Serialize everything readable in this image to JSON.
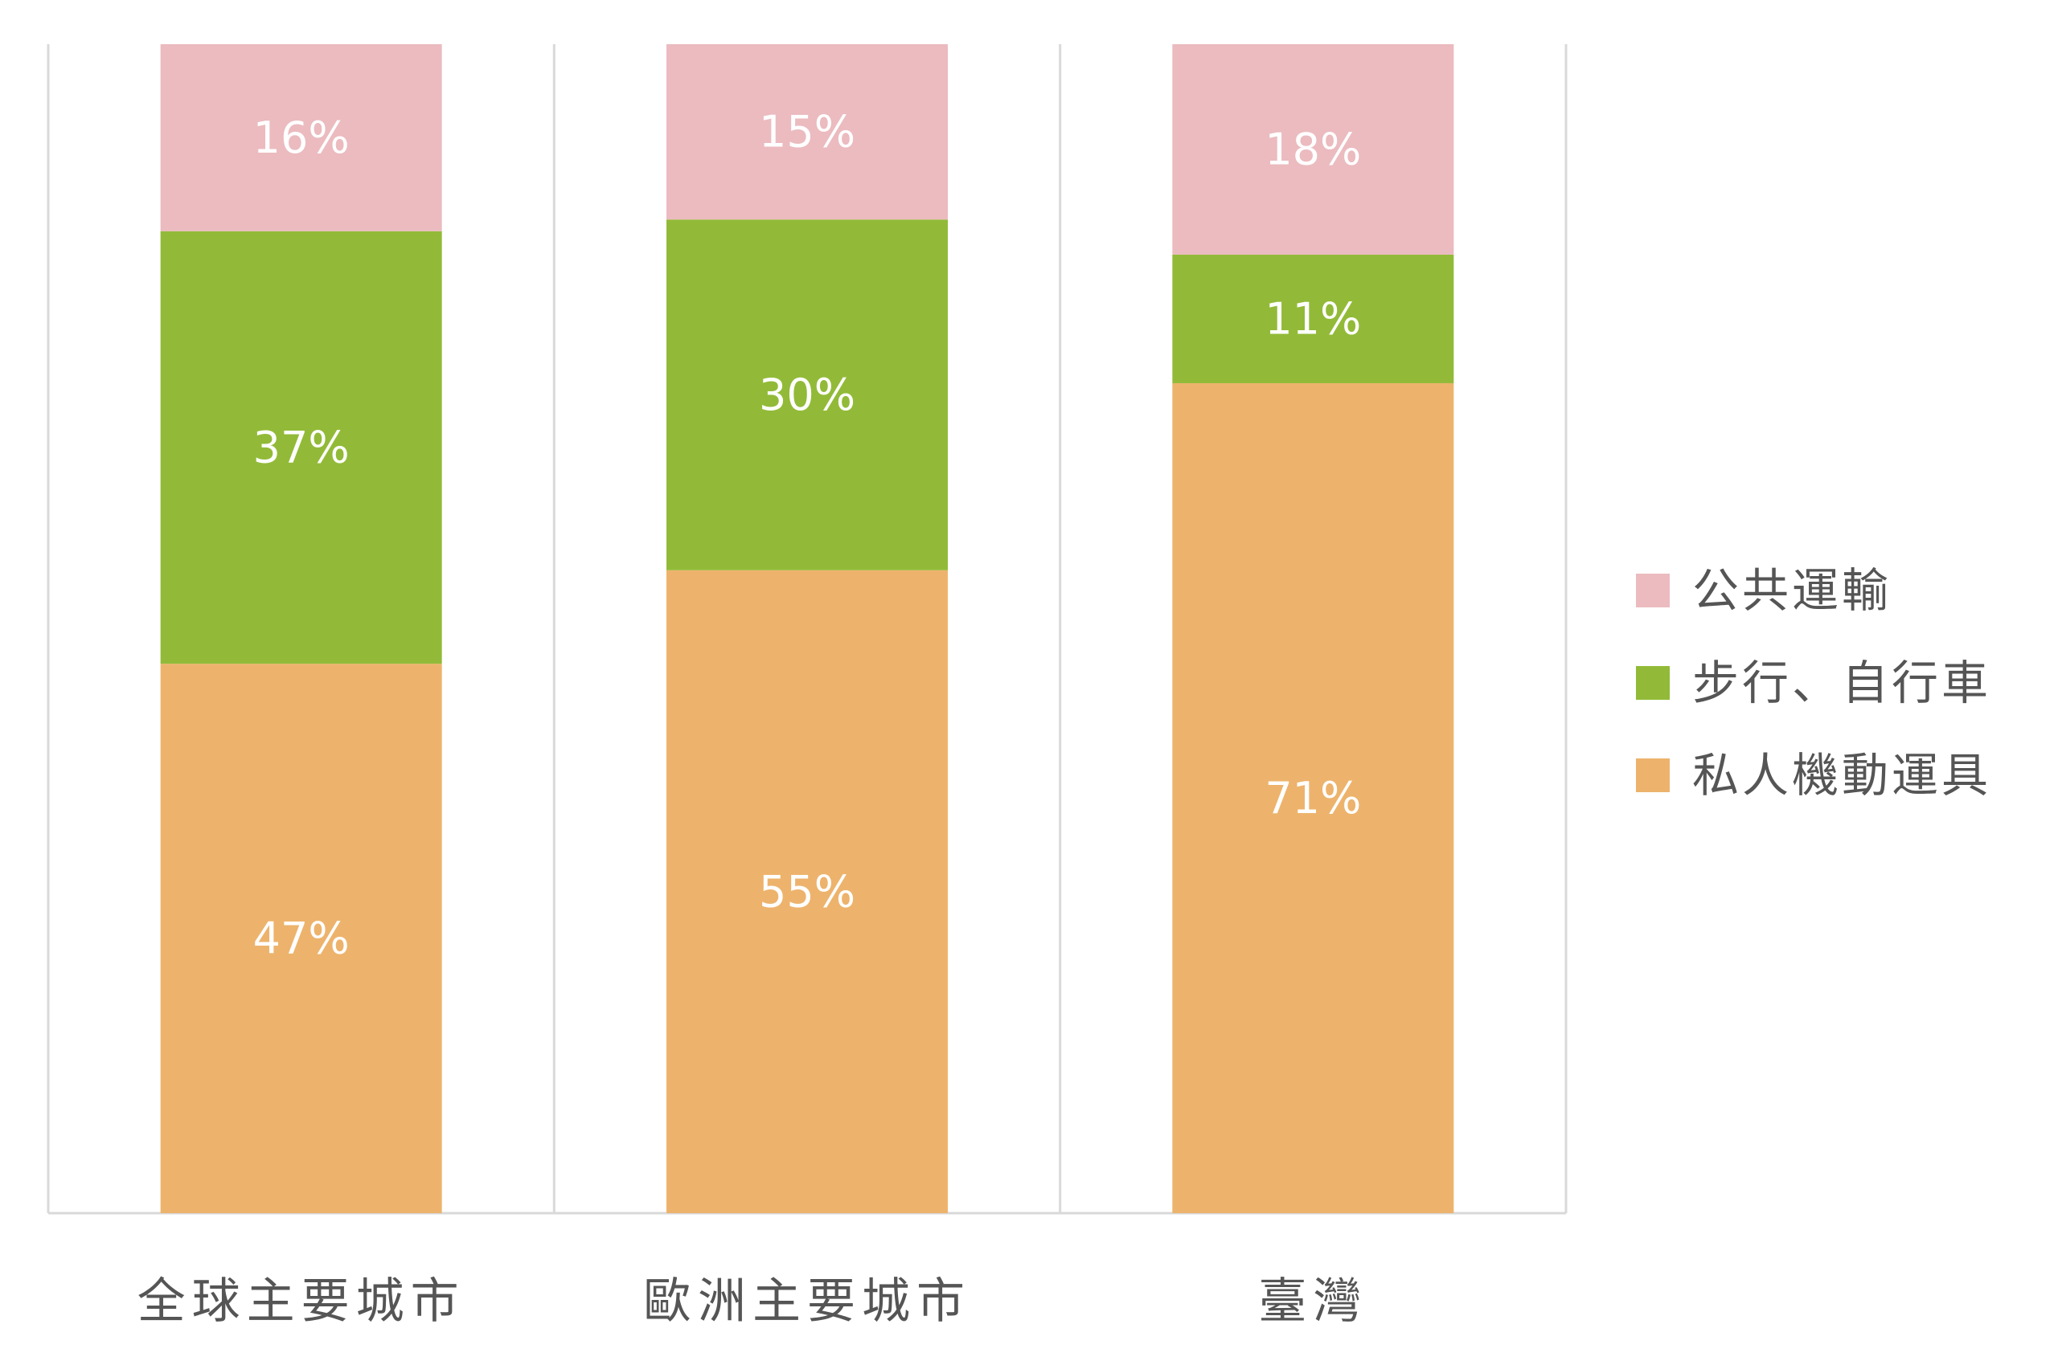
{
  "chart_data": {
    "type": "bar",
    "stacked": true,
    "normalized": true,
    "categories": [
      "全球主要城市",
      "歐洲主要城市",
      "臺灣"
    ],
    "series": [
      {
        "name": "私人機動運具",
        "values": [
          47,
          55,
          71
        ],
        "labels": [
          "47%",
          "55%",
          "71%"
        ],
        "color": "#EDB36C"
      },
      {
        "name": "步行、自行車",
        "values": [
          37,
          30,
          11
        ],
        "labels": [
          "37%",
          "30%",
          "11%"
        ],
        "color": "#92BA38"
      },
      {
        "name": "公共運輸",
        "values": [
          16,
          15,
          18
        ],
        "labels": [
          "16%",
          "15%",
          "18%"
        ],
        "color": "#EBBBBF"
      }
    ],
    "legend_order": [
      "公共運輸",
      "步行、自行車",
      "私人機動運具"
    ],
    "legend_position": "right",
    "ylim": [
      0,
      100
    ],
    "grid": "vertical-category-separators"
  }
}
